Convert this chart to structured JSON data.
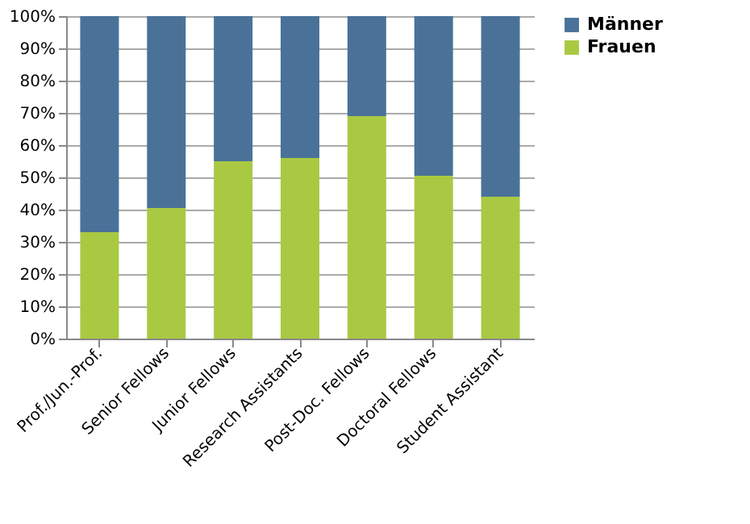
{
  "chart_data": {
    "type": "bar",
    "stacked": true,
    "categories": [
      "Prof./Jun.-Prof.",
      "Senior Fellows",
      "Junior Fellows",
      "Research Assistants",
      "Post-Doc. Fellows",
      "Doctoral Fellows",
      "Student Assistant"
    ],
    "series": [
      {
        "name": "Frauen",
        "color": "#a9c943",
        "values": [
          33,
          40.5,
          55,
          56,
          69,
          50.5,
          44
        ]
      },
      {
        "name": "Männer",
        "color": "#4a7298",
        "values": [
          67,
          59.5,
          45,
          44,
          31,
          49.5,
          56
        ]
      }
    ],
    "ylim": [
      0,
      100
    ],
    "yticks": [
      {
        "value": 0,
        "label": "0%"
      },
      {
        "value": 10,
        "label": "10%"
      },
      {
        "value": 20,
        "label": "20%"
      },
      {
        "value": 30,
        "label": "30%"
      },
      {
        "value": 40,
        "label": "40%"
      },
      {
        "value": 50,
        "label": "50%"
      },
      {
        "value": 60,
        "label": "60%"
      },
      {
        "value": 70,
        "label": "70%"
      },
      {
        "value": 80,
        "label": "80%"
      },
      {
        "value": 90,
        "label": "90%"
      },
      {
        "value": 100,
        "label": "100%"
      }
    ],
    "grid": "y",
    "legend": "right"
  }
}
